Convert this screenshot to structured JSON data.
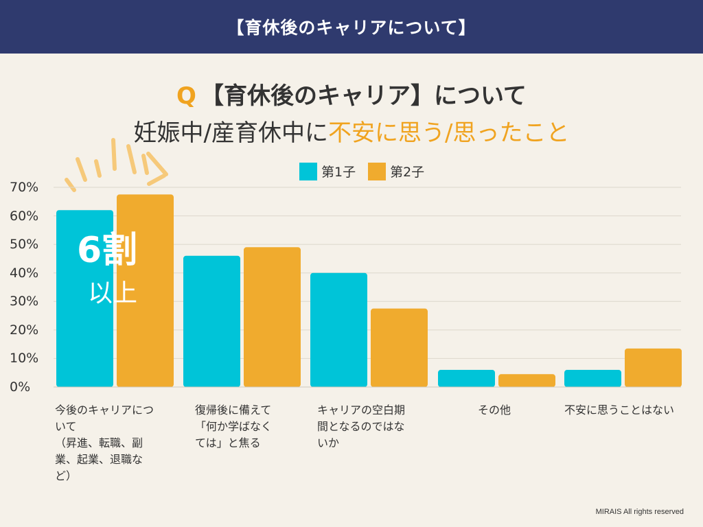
{
  "header": {
    "title": "【育休後のキャリアについて】"
  },
  "question": {
    "prefix": "Q",
    "line1": "【育休後のキャリア】について",
    "line2_a": "妊娠中/産育休中に",
    "line2_b": "不安に思う/思ったこと"
  },
  "callout": {
    "big": "6割",
    "small": "以上"
  },
  "footer": "MIRAIS All rights reserved",
  "colors": {
    "first": "#00c4d8",
    "second": "#f0ab2e",
    "header_bg": "#2f3a6e",
    "accent": "#f0a31f"
  },
  "chart_data": {
    "type": "bar",
    "title": "妊娠中/産育休中に不安に思う/思ったこと",
    "ylim": [
      0,
      70
    ],
    "yticks": [
      "0%",
      "10%",
      "20%",
      "30%",
      "40%",
      "50%",
      "60%",
      "70%"
    ],
    "grid": true,
    "legend_position": "top-center",
    "categories": [
      "今後のキャリアについて（昇進、転職、副業、起業、退職など）",
      "復帰後に備えて「何か学ばなくては」と焦る",
      "キャリアの空白期間となるのではないか",
      "その他",
      "不安に思うことはない"
    ],
    "category_lines": [
      [
        "今後のキャリアにつ",
        "いて",
        "（昇進、転職、副",
        "業、起業、退職な",
        "ど）"
      ],
      [
        "復帰後に備えて",
        "「何か学ばなく",
        "ては」と焦る"
      ],
      [
        "キャリアの空白期",
        "間となるのではな",
        "いか"
      ],
      [
        "その他"
      ],
      [
        "不安に思うことはない"
      ]
    ],
    "series": [
      {
        "name": "第1子",
        "values": [
          62,
          46,
          40,
          6,
          6
        ]
      },
      {
        "name": "第2子",
        "values": [
          67.5,
          49,
          27.5,
          4.5,
          13.5
        ]
      }
    ]
  }
}
